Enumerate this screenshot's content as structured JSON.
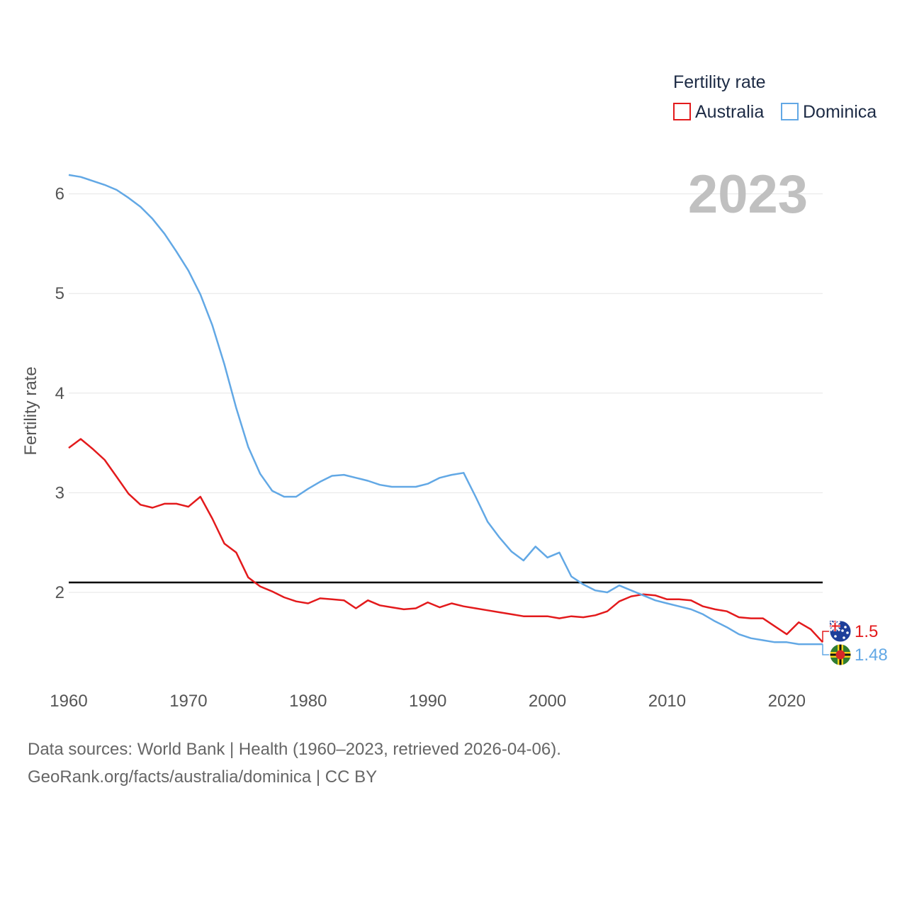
{
  "chart_data": {
    "type": "line",
    "title": "Fertility rate",
    "ylabel": "Fertility rate",
    "xlabel": "",
    "current_year_label": "2023",
    "x_ticks": [
      "1960",
      "1970",
      "1980",
      "1990",
      "2000",
      "2010",
      "2020"
    ],
    "y_ticks": [
      "2",
      "3",
      "4",
      "5",
      "6"
    ],
    "xlim": [
      1960,
      2023
    ],
    "ylim": [
      1.2,
      6.3
    ],
    "grid": true,
    "legend_position": "top-right",
    "reference_line": {
      "value": 2.1,
      "color": "#000000"
    },
    "series": [
      {
        "name": "Australia",
        "color": "#e31a1c",
        "end_value_label": "1.5",
        "flag": "australia-flag",
        "x": [
          1960,
          1961,
          1962,
          1963,
          1964,
          1965,
          1966,
          1967,
          1968,
          1969,
          1970,
          1971,
          1972,
          1973,
          1974,
          1975,
          1976,
          1977,
          1978,
          1979,
          1980,
          1981,
          1982,
          1983,
          1984,
          1985,
          1986,
          1987,
          1988,
          1989,
          1990,
          1991,
          1992,
          1993,
          1994,
          1995,
          1996,
          1997,
          1998,
          1999,
          2000,
          2001,
          2002,
          2003,
          2004,
          2005,
          2006,
          2007,
          2008,
          2009,
          2010,
          2011,
          2012,
          2013,
          2014,
          2015,
          2016,
          2017,
          2018,
          2019,
          2020,
          2021,
          2022,
          2023
        ],
        "values": [
          3.45,
          3.54,
          3.44,
          3.33,
          3.16,
          2.99,
          2.88,
          2.85,
          2.89,
          2.89,
          2.86,
          2.96,
          2.74,
          2.49,
          2.4,
          2.15,
          2.06,
          2.01,
          1.95,
          1.91,
          1.89,
          1.94,
          1.93,
          1.92,
          1.84,
          1.92,
          1.87,
          1.85,
          1.83,
          1.84,
          1.9,
          1.85,
          1.89,
          1.86,
          1.84,
          1.82,
          1.8,
          1.78,
          1.76,
          1.76,
          1.76,
          1.74,
          1.76,
          1.75,
          1.77,
          1.81,
          1.91,
          1.96,
          1.98,
          1.97,
          1.93,
          1.93,
          1.92,
          1.86,
          1.83,
          1.81,
          1.75,
          1.74,
          1.74,
          1.66,
          1.58,
          1.7,
          1.63,
          1.5
        ]
      },
      {
        "name": "Dominica",
        "color": "#62a8e5",
        "end_value_label": "1.48",
        "flag": "dominica-flag",
        "x": [
          1960,
          1961,
          1962,
          1963,
          1964,
          1965,
          1966,
          1967,
          1968,
          1969,
          1970,
          1971,
          1972,
          1973,
          1974,
          1975,
          1976,
          1977,
          1978,
          1979,
          1980,
          1981,
          1982,
          1983,
          1984,
          1985,
          1986,
          1987,
          1988,
          1989,
          1990,
          1991,
          1992,
          1993,
          1994,
          1995,
          1996,
          1997,
          1998,
          1999,
          2000,
          2001,
          2002,
          2003,
          2004,
          2005,
          2006,
          2007,
          2008,
          2009,
          2010,
          2011,
          2012,
          2013,
          2014,
          2015,
          2016,
          2017,
          2018,
          2019,
          2020,
          2021,
          2022,
          2023
        ],
        "values": [
          6.19,
          6.17,
          6.13,
          6.09,
          6.04,
          5.96,
          5.87,
          5.75,
          5.6,
          5.42,
          5.23,
          4.99,
          4.68,
          4.29,
          3.85,
          3.46,
          3.19,
          3.02,
          2.96,
          2.96,
          3.04,
          3.11,
          3.17,
          3.18,
          3.15,
          3.12,
          3.08,
          3.06,
          3.06,
          3.06,
          3.09,
          3.15,
          3.18,
          3.2,
          2.96,
          2.71,
          2.55,
          2.41,
          2.32,
          2.46,
          2.35,
          2.4,
          2.16,
          2.08,
          2.02,
          2.0,
          2.07,
          2.02,
          1.97,
          1.92,
          1.89,
          1.86,
          1.83,
          1.78,
          1.71,
          1.65,
          1.58,
          1.54,
          1.52,
          1.5,
          1.5,
          1.48,
          1.48,
          1.48
        ]
      }
    ]
  },
  "footer": {
    "line1": "Data sources: World Bank | Health (1960–2023, retrieved 2026-04-06).",
    "line2": "GeoRank.org/facts/australia/dominica | CC BY"
  }
}
